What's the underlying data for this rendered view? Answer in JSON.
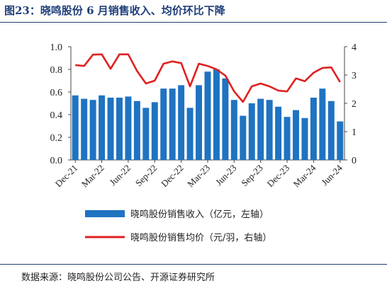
{
  "title": "图23：晓鸣股份 6 月销售收入、均价环比下降",
  "source": "数据来源：晓鸣股份公司公告、开源证券研究所",
  "chart_data": {
    "type": "bar",
    "categories": [
      "Dec-21",
      "Jan-22",
      "Feb-22",
      "Mar-22",
      "Apr-22",
      "May-22",
      "Jun-22",
      "Jul-22",
      "Aug-22",
      "Sep-22",
      "Oct-22",
      "Nov-22",
      "Dec-22",
      "Jan-23",
      "Feb-23",
      "Mar-23",
      "Apr-23",
      "May-23",
      "Jun-23",
      "Jul-23",
      "Aug-23",
      "Sep-23",
      "Oct-23",
      "Nov-23",
      "Dec-23",
      "Jan-24",
      "Feb-24",
      "Mar-24",
      "Apr-24",
      "May-24",
      "Jun-24"
    ],
    "x_tick_labels": [
      "Dec-21",
      "Mar-22",
      "Jun-22",
      "Sep-22",
      "Dec-22",
      "Mar-23",
      "Jun-23",
      "Sep-23",
      "Dec-23",
      "Mar-24",
      "Jun-24"
    ],
    "series": [
      {
        "name": "晓鸣股份销售收入（亿元，左轴）",
        "type": "bar",
        "axis": "left",
        "color": "#1f73c1",
        "values": [
          0.57,
          0.54,
          0.53,
          0.57,
          0.55,
          0.55,
          0.56,
          0.52,
          0.46,
          0.51,
          0.63,
          0.63,
          0.66,
          0.46,
          0.66,
          0.78,
          0.8,
          0.72,
          0.53,
          0.39,
          0.5,
          0.54,
          0.53,
          0.47,
          0.38,
          0.44,
          0.37,
          0.55,
          0.63,
          0.52,
          0.34
        ]
      },
      {
        "name": "晓鸣股份销售均价（元/羽，右轴）",
        "type": "line",
        "axis": "right",
        "color": "#e02020",
        "values": [
          3.35,
          3.32,
          3.72,
          3.73,
          3.22,
          3.73,
          3.73,
          3.14,
          2.7,
          2.8,
          3.4,
          3.48,
          3.42,
          2.6,
          3.4,
          3.32,
          3.2,
          2.98,
          2.42,
          2.05,
          2.6,
          2.7,
          2.6,
          2.45,
          2.42,
          2.88,
          2.78,
          3.08,
          3.25,
          3.27,
          2.75
        ]
      }
    ],
    "y_left": {
      "ylim": [
        0,
        1.0
      ],
      "ticks": [
        "0.0",
        "0.2",
        "0.4",
        "0.6",
        "0.8",
        "1.0"
      ]
    },
    "y_right": {
      "ylim": [
        0,
        4
      ],
      "ticks": [
        "0",
        "1",
        "2",
        "3",
        "4"
      ]
    },
    "legend_position": "bottom",
    "grid": false
  }
}
